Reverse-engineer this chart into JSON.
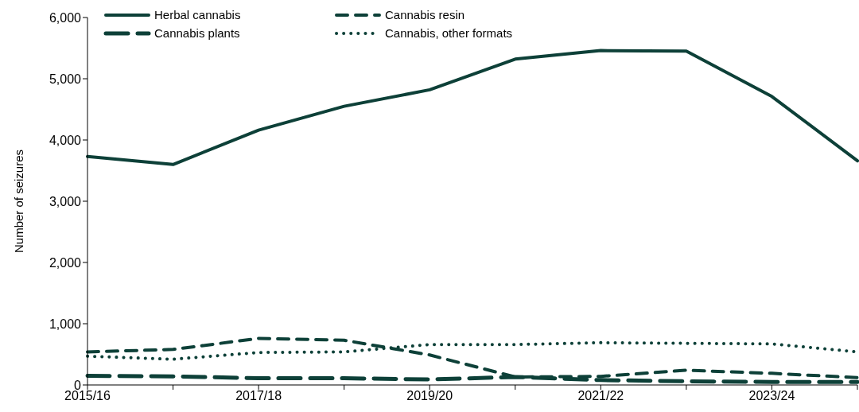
{
  "chart_data": {
    "type": "line",
    "ylabel": "Number of seizures",
    "categories": [
      "2015/16",
      null,
      "2017/18",
      null,
      "2019/20",
      null,
      "2021/22",
      null,
      "2023/24",
      null
    ],
    "series": [
      {
        "name": "Herbal cannabis",
        "color": "#0d4038",
        "line_style": "solid",
        "values": [
          3730,
          3600,
          4160,
          4550,
          4820,
          5320,
          5460,
          5450,
          4710,
          3660
        ]
      },
      {
        "name": "Cannabis resin",
        "color": "#0d4038",
        "line_style": "dashed",
        "values": [
          540,
          580,
          760,
          730,
          490,
          130,
          140,
          240,
          190,
          120
        ]
      },
      {
        "name": "Cannabis plants",
        "color": "#0d4038",
        "line_style": "longdash",
        "values": [
          150,
          140,
          110,
          110,
          90,
          130,
          80,
          60,
          50,
          50
        ]
      },
      {
        "name": "Cannabis, other formats",
        "color": "#0d4038",
        "line_style": "dotted",
        "values": [
          470,
          420,
          530,
          540,
          660,
          660,
          690,
          680,
          670,
          540
        ]
      }
    ],
    "ylim": [
      0,
      6000
    ],
    "yticks": [
      {
        "value": 0,
        "label": "0"
      },
      {
        "value": 1000,
        "label": "1,000"
      },
      {
        "value": 2000,
        "label": "2,000"
      },
      {
        "value": 3000,
        "label": "3,000"
      },
      {
        "value": 4000,
        "label": "4,000"
      },
      {
        "value": 5000,
        "label": "5,000"
      },
      {
        "value": 6000,
        "label": "6,000"
      }
    ],
    "grid": false,
    "legend": "top left"
  }
}
